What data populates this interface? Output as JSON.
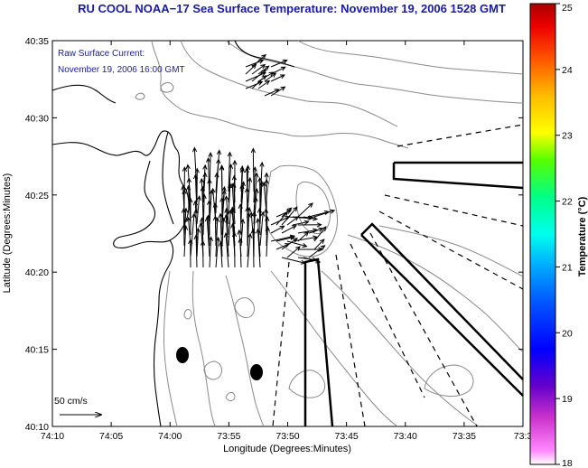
{
  "title": "RU COOL  NOAA−17  Sea Surface Temperature:  November 19, 2006 1528 GMT",
  "annotation": {
    "line1": "Raw Surface Current:",
    "line2": "November 19, 2006 16:00 GMT"
  },
  "scale": {
    "label": "50 cm/s"
  },
  "axes": {
    "xlabel": "Longitude (Degrees:Minutes)",
    "ylabel": "Latitude (Degrees:Minutes)",
    "xticks": [
      "74:10",
      "74:05",
      "74:00",
      "73:55",
      "73:50",
      "73:45",
      "73:40",
      "73:35",
      "73:3"
    ],
    "yticks": [
      "40:35",
      "40:30",
      "40:25",
      "40:20",
      "40:15",
      "40:10"
    ]
  },
  "colorbar": {
    "label": "Temperature (°C)",
    "ticks": [
      "25",
      "24",
      "23",
      "22",
      "21",
      "20",
      "19",
      "18"
    ],
    "min": 18,
    "max": 25
  },
  "chart_data": {
    "type": "map",
    "xlim": [
      "74:10",
      "73:30"
    ],
    "ylim": [
      "40:10",
      "40:35"
    ],
    "features": [
      "coastline",
      "bathymetry-contours",
      "surface-current-vectors",
      "shipping-channels"
    ]
  }
}
